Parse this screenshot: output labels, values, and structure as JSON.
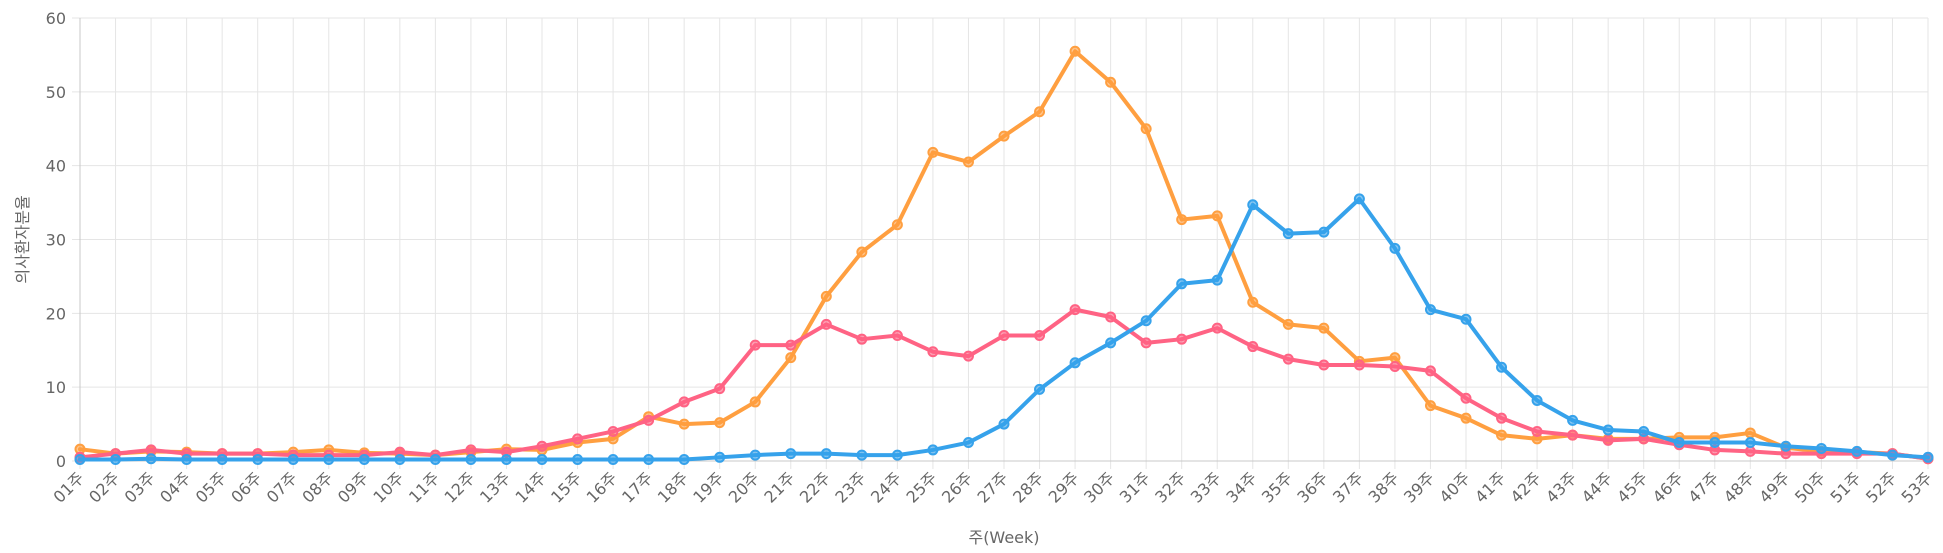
{
  "chart_data": {
    "type": "line",
    "xlabel": "주(Week)",
    "ylabel": "의사환자분율",
    "ylim": [
      0,
      60
    ],
    "yticks": [
      0,
      10,
      20,
      30,
      40,
      50,
      60
    ],
    "grid": true,
    "legend": "none",
    "categories": [
      "01주",
      "02주",
      "03주",
      "04주",
      "05주",
      "06주",
      "07주",
      "08주",
      "09주",
      "10주",
      "11주",
      "12주",
      "13주",
      "14주",
      "15주",
      "16주",
      "17주",
      "18주",
      "19주",
      "20주",
      "21주",
      "22주",
      "23주",
      "24주",
      "25주",
      "26주",
      "27주",
      "28주",
      "29주",
      "30주",
      "31주",
      "32주",
      "33주",
      "34주",
      "35주",
      "36주",
      "37주",
      "38주",
      "39주",
      "40주",
      "41주",
      "42주",
      "43주",
      "44주",
      "45주",
      "46주",
      "47주",
      "48주",
      "49주",
      "50주",
      "51주",
      "52주",
      "53주"
    ],
    "series": [
      {
        "color": "#ff9f40",
        "values": [
          1.6,
          1.0,
          1.3,
          1.2,
          1.0,
          1.0,
          1.2,
          1.5,
          1.1,
          1.0,
          0.8,
          1.2,
          1.6,
          1.5,
          2.5,
          3.0,
          6.0,
          5.0,
          5.2,
          8.0,
          14.0,
          22.3,
          28.3,
          32.0,
          41.8,
          40.5,
          44.0,
          47.3,
          55.5,
          51.3,
          45.0,
          32.7,
          33.2,
          21.5,
          18.5,
          18.0,
          13.5,
          14.0,
          7.5,
          5.8,
          3.5,
          3.0,
          3.5,
          3.0,
          3.0,
          3.2,
          3.2,
          3.8,
          1.8,
          1.3,
          1.2,
          1.0,
          0.3
        ]
      },
      {
        "color": "#ff6384",
        "values": [
          0.5,
          1.0,
          1.5,
          1.0,
          1.0,
          1.0,
          0.8,
          0.8,
          0.8,
          1.2,
          0.8,
          1.5,
          1.2,
          2.0,
          3.0,
          4.0,
          5.5,
          8.0,
          9.8,
          15.7,
          15.7,
          18.5,
          16.5,
          17.0,
          14.8,
          14.2,
          17.0,
          17.0,
          20.5,
          19.5,
          16.0,
          16.5,
          18.0,
          15.5,
          13.8,
          13.0,
          13.0,
          12.8,
          12.2,
          8.5,
          5.8,
          4.0,
          3.5,
          2.8,
          3.0,
          2.2,
          1.5,
          1.3,
          1.0,
          1.0,
          1.0,
          1.0,
          0.3
        ]
      },
      {
        "color": "#36a2eb",
        "values": [
          0.2,
          0.2,
          0.3,
          0.2,
          0.2,
          0.2,
          0.2,
          0.2,
          0.2,
          0.2,
          0.2,
          0.2,
          0.2,
          0.2,
          0.2,
          0.2,
          0.2,
          0.2,
          0.5,
          0.8,
          1.0,
          1.0,
          0.8,
          0.8,
          1.5,
          2.5,
          5.0,
          9.7,
          13.3,
          16.0,
          19.0,
          24.0,
          24.5,
          34.7,
          30.8,
          31.0,
          35.5,
          28.8,
          20.5,
          19.2,
          12.7,
          8.2,
          5.5,
          4.2,
          4.0,
          2.5,
          2.5,
          2.5,
          2.0,
          1.7,
          1.3,
          0.8,
          0.5
        ]
      }
    ]
  }
}
